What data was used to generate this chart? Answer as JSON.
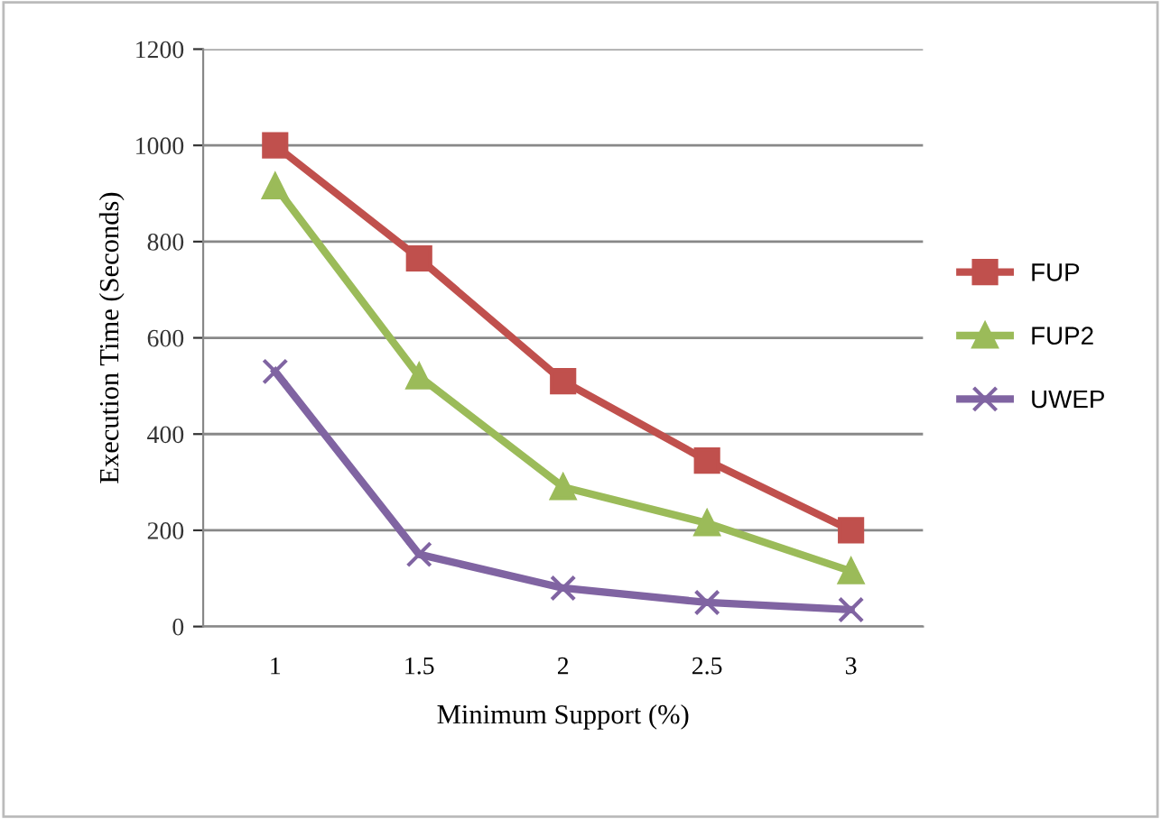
{
  "chart_data": {
    "type": "line",
    "xlabel": "Minimum Support (%)",
    "ylabel": "Execution Time (Seconds)",
    "categories": [
      "1",
      "1.5",
      "2",
      "2.5",
      "3"
    ],
    "series": [
      {
        "name": "FUP",
        "color": "#c0504d",
        "marker": "square",
        "values": [
          1000,
          765,
          510,
          345,
          200
        ]
      },
      {
        "name": "FUP2",
        "color": "#9bbb59",
        "marker": "triangle",
        "values": [
          915,
          520,
          290,
          215,
          115
        ]
      },
      {
        "name": "UWEP",
        "color": "#8064a2",
        "marker": "cross",
        "values": [
          530,
          150,
          80,
          50,
          35
        ]
      }
    ],
    "ylim": [
      0,
      1200
    ],
    "yticks": [
      0,
      200,
      400,
      600,
      800,
      1000,
      1200
    ],
    "grid": "y",
    "legend": "right"
  }
}
